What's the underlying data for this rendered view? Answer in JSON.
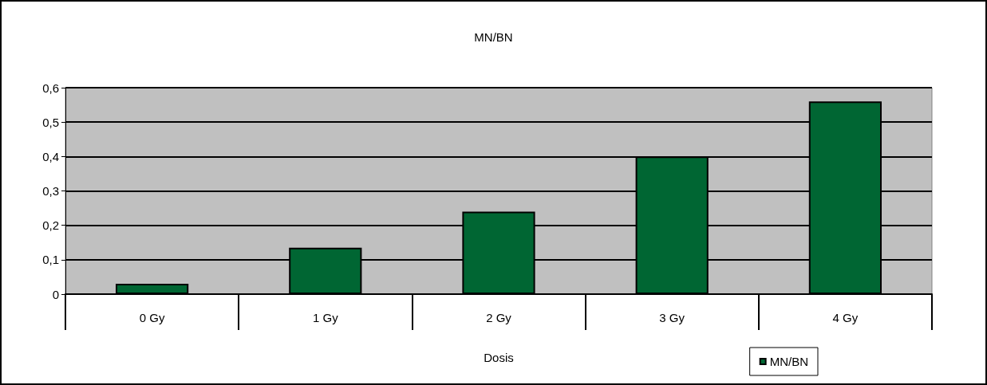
{
  "chart_data": {
    "type": "bar",
    "title": "MN/BN",
    "xlabel": "Dosis",
    "categories": [
      "0 Gy",
      "1 Gy",
      "2 Gy",
      "3 Gy",
      "4 Gy"
    ],
    "series": [
      {
        "name": "MN/BN",
        "color": "#006633",
        "values": [
          0.03,
          0.135,
          0.24,
          0.4,
          0.56
        ]
      }
    ],
    "ylim": [
      0,
      0.6
    ],
    "yticks": [
      0,
      {
        "value": 0.1,
        "label": "0,1"
      },
      {
        "value": 0.2,
        "label": "0,2"
      },
      {
        "value": 0.3,
        "label": "0,3"
      },
      {
        "value": 0.4,
        "label": "0,4"
      },
      {
        "value": 0.5,
        "label": "0,5"
      },
      {
        "value": 0.6,
        "label": "0,6"
      }
    ],
    "grid": "y",
    "legend": "bottom right"
  }
}
